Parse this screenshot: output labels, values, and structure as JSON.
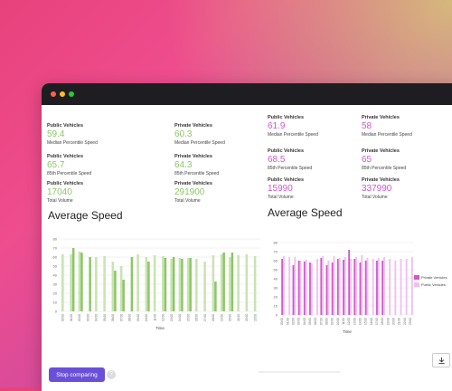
{
  "window": {
    "dots": [
      "#ff5f57",
      "#febc2e",
      "#28c840"
    ]
  },
  "left": {
    "stats": [
      {
        "label": "Public Vehicles",
        "value": "59.4",
        "sub": "Median Percentile Speed"
      },
      {
        "label": "Private Vehicles",
        "value": "60.3",
        "sub": "Median Percentile Speed"
      },
      {
        "label": "Public Vehicles",
        "value": "65.7",
        "sub": "85th Percentile Speed"
      },
      {
        "label": "Private Vehicles",
        "value": "64.3",
        "sub": "85th Percentile Speed"
      },
      {
        "label": "Public Vehicles",
        "value": "17040",
        "sub": "Total Volume"
      },
      {
        "label": "Private Vehicles",
        "value": "291900",
        "sub": "Total Volume"
      }
    ],
    "title": "Average Speed",
    "xlabel": "Time"
  },
  "right": {
    "stats": [
      {
        "label": "Public Vehicles",
        "value": "61.9",
        "sub": "Median Percentile Speed"
      },
      {
        "label": "Private Vehicles",
        "value": "58",
        "sub": "Median Percentile Speed"
      },
      {
        "label": "Public Vehicles",
        "value": "68.5",
        "sub": "85th Percentile Speed"
      },
      {
        "label": "Private Vehicles",
        "value": "65",
        "sub": "85th Percentile Speed"
      },
      {
        "label": "Public Vehicles",
        "value": "15990",
        "sub": "Total Volume"
      },
      {
        "label": "Private Vehicles",
        "value": "337990",
        "sub": "Total Volume"
      }
    ],
    "title": "Average Speed",
    "xlabel": "Time",
    "legend": [
      "Private Vehicles",
      "Public Vehicles"
    ]
  },
  "colors": {
    "green": "#8cc766",
    "green_light": "#c9e3b3",
    "pink": "#d257d0",
    "pink_light": "#efc0ee",
    "button": "#6a50d8"
  },
  "buttons": {
    "stop": "Stop comparing",
    "help": "?"
  },
  "icons": {
    "download": "download-icon",
    "help": "help-icon"
  },
  "chart_data": [
    {
      "type": "bar",
      "title": "",
      "xlabel": "Time",
      "ylabel": "",
      "ylim": [
        0,
        80
      ],
      "yticks": [
        0,
        10,
        20,
        30,
        40,
        50,
        60,
        70,
        80
      ],
      "categories": [
        "00:00",
        "01:00",
        "02:00",
        "03:00",
        "04:00",
        "05:00",
        "06:00",
        "07:00",
        "08:00",
        "09:00",
        "10:00",
        "11:00",
        "12:00",
        "13:00",
        "14:00",
        "15:00",
        "16:00",
        "17:00",
        "18:00",
        "19:00",
        "20:00",
        "21:00",
        "22:00",
        "23:00"
      ],
      "series": [
        {
          "values": [
            63,
            63,
            66,
            0,
            60,
            61,
            55,
            50,
            0,
            63,
            60,
            62,
            61,
            58,
            59,
            59,
            58,
            55,
            62,
            63,
            60,
            62,
            63,
            61
          ]
        },
        {
          "values": [
            0,
            70,
            65,
            60,
            0,
            0,
            45,
            35,
            60,
            0,
            55,
            0,
            59,
            60,
            58,
            59,
            0,
            0,
            33,
            65,
            65,
            0,
            0,
            0
          ]
        }
      ]
    },
    {
      "type": "bar",
      "title": "",
      "xlabel": "Time",
      "ylabel": "",
      "ylim": [
        0,
        80
      ],
      "yticks": [
        0,
        10,
        20,
        30,
        40,
        50,
        60,
        70,
        80
      ],
      "categories": [
        "00:00",
        "01:00",
        "02:00",
        "03:00",
        "04:00",
        "05:00",
        "06:00",
        "07:00",
        "08:00",
        "09:00",
        "10:00",
        "11:00",
        "12:00",
        "13:00",
        "14:00",
        "15:00",
        "16:00",
        "17:00",
        "18:00",
        "19:00",
        "20:00",
        "21:00",
        "22:00",
        "23:00"
      ],
      "series": [
        {
          "name": "Private Vehicles",
          "values": [
            62,
            0,
            55,
            60,
            59,
            58,
            0,
            63,
            55,
            58,
            62,
            61,
            72,
            62,
            58,
            60,
            0,
            60,
            60,
            0,
            0,
            0,
            0,
            0
          ]
        },
        {
          "name": "Public Vehicles",
          "values": [
            65,
            64,
            64,
            60,
            61,
            57,
            62,
            65,
            60,
            65,
            63,
            64,
            62,
            64,
            66,
            63,
            62,
            63,
            64,
            62,
            60,
            62,
            62,
            64
          ]
        }
      ]
    }
  ]
}
